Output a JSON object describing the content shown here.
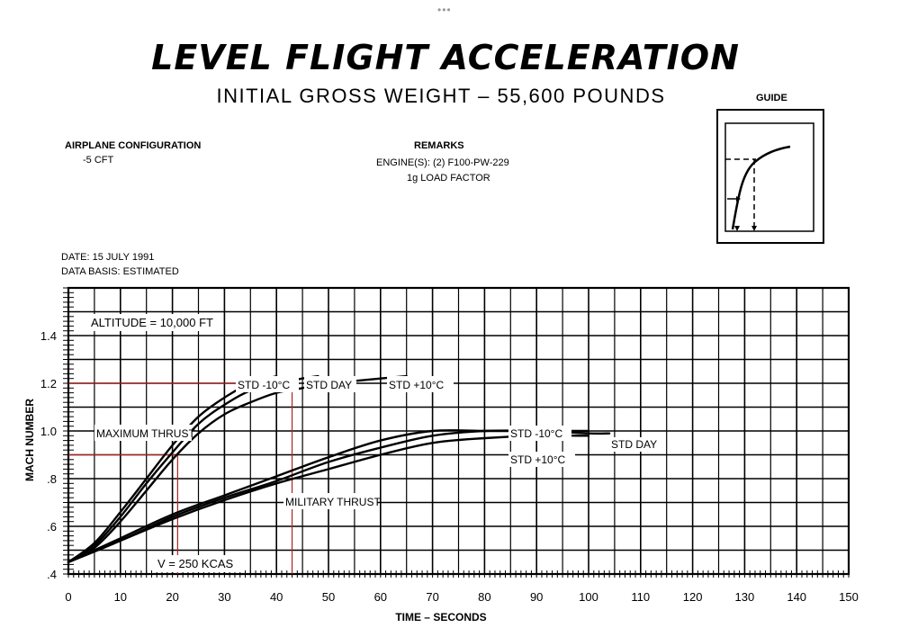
{
  "header": {
    "dots": "•••",
    "title": "LEVEL FLIGHT ACCELERATION",
    "subtitle": "INITIAL GROSS WEIGHT – 55,600 POUNDS"
  },
  "info": {
    "config_label": "AIRPLANE CONFIGURATION",
    "config_value": "-5 CFT",
    "remarks_label": "REMARKS",
    "remarks_engines": "ENGINE(S): (2) F100-PW-229",
    "remarks_load": "1g LOAD FACTOR",
    "guide_label": "GUIDE",
    "date": "DATE: 15 JULY 1991",
    "data_basis": "DATA BASIS: ESTIMATED"
  },
  "chart_data": {
    "type": "line",
    "xlabel": "TIME – SECONDS",
    "ylabel": "MACH NUMBER",
    "xlim": [
      0,
      150
    ],
    "ylim": [
      0.4,
      1.6
    ],
    "x_ticks": [
      "0",
      "10",
      "20",
      "30",
      "40",
      "50",
      "60",
      "70",
      "80",
      "90",
      "100",
      "110",
      "120",
      "130",
      "140",
      "150"
    ],
    "y_ticks": [
      ".4",
      ".6",
      ".8",
      "1.0",
      "1.2",
      "1.4"
    ],
    "grid": true,
    "annotations": {
      "altitude": "ALTITUDE = 10,000 FT",
      "max_thrust": "MAXIMUM THRUST",
      "mil_thrust": "MILITARY THRUST",
      "speed": "V = 250 KCAS",
      "max_std_minus10": "STD -10°C",
      "max_std_day": "STD DAY",
      "max_std_plus10": "STD +10°C",
      "mil_std_minus10": "STD -10°C",
      "mil_std_day": "STD DAY",
      "mil_std_plus10": "STD +10°C"
    },
    "series": [
      {
        "name": "MAXIMUM THRUST STD -10°C",
        "x": [
          0,
          5,
          10,
          15,
          20,
          25,
          30,
          35,
          40
        ],
        "y": [
          0.45,
          0.53,
          0.66,
          0.8,
          0.94,
          1.06,
          1.14,
          1.2,
          1.23
        ]
      },
      {
        "name": "MAXIMUM THRUST STD DAY",
        "x": [
          0,
          5,
          10,
          15,
          20,
          25,
          30,
          35,
          40,
          45,
          48
        ],
        "y": [
          0.45,
          0.52,
          0.64,
          0.78,
          0.91,
          1.03,
          1.11,
          1.17,
          1.2,
          1.22,
          1.23
        ]
      },
      {
        "name": "MAXIMUM THRUST STD +10°C",
        "x": [
          0,
          5,
          10,
          15,
          20,
          25,
          30,
          35,
          40,
          45,
          50,
          55,
          60,
          65
        ],
        "y": [
          0.45,
          0.51,
          0.62,
          0.75,
          0.88,
          0.99,
          1.07,
          1.12,
          1.16,
          1.18,
          1.2,
          1.21,
          1.22,
          1.23
        ]
      },
      {
        "name": "MILITARY THRUST STD -10°C",
        "x": [
          0,
          10,
          20,
          30,
          40,
          50,
          60,
          70,
          80,
          90,
          100
        ],
        "y": [
          0.45,
          0.55,
          0.65,
          0.73,
          0.81,
          0.89,
          0.96,
          1.0,
          1.0,
          1.0,
          1.0
        ]
      },
      {
        "name": "MILITARY THRUST STD DAY",
        "x": [
          0,
          10,
          20,
          30,
          40,
          50,
          60,
          70,
          80,
          90,
          100,
          104
        ],
        "y": [
          0.45,
          0.54,
          0.64,
          0.72,
          0.79,
          0.87,
          0.93,
          0.98,
          1.0,
          1.0,
          0.99,
          0.99
        ]
      },
      {
        "name": "MILITARY THRUST STD +10°C",
        "x": [
          0,
          10,
          20,
          30,
          40,
          50,
          60,
          70,
          80,
          90,
          100
        ],
        "y": [
          0.45,
          0.54,
          0.63,
          0.71,
          0.78,
          0.84,
          0.9,
          0.95,
          0.97,
          0.98,
          0.98
        ]
      }
    ],
    "reference_lines": [
      {
        "y": 1.2,
        "x_end": 43
      },
      {
        "y": 0.9,
        "x_end": 21
      },
      {
        "x": 21,
        "y_end": 0.9
      },
      {
        "x": 43,
        "y_end": 1.2
      }
    ]
  }
}
